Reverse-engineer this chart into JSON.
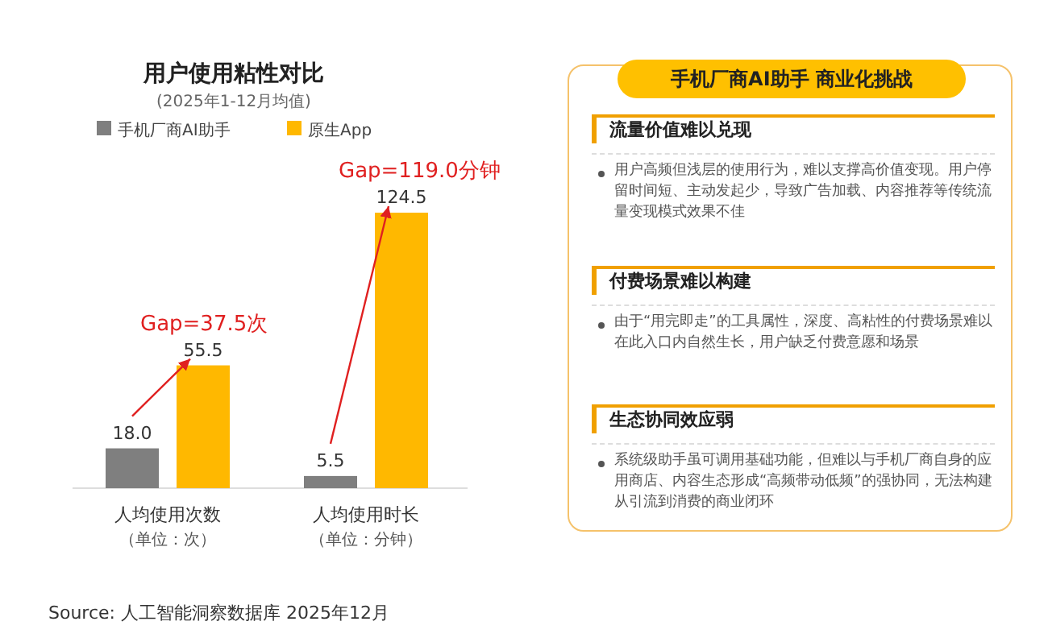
{
  "chart_data": [
    {
      "type": "bar",
      "title": "用户使用粘性对比",
      "subtitle": "(2025年1-12月均值)",
      "categories": [
        "人均使用次数（单位：次）",
        "人均使用时长（单位：分钟）"
      ],
      "series": [
        {
          "name": "手机厂商AI助手",
          "color": "#7f7f7f",
          "values": [
            18.0,
            5.5
          ],
          "value_labels": [
            "18.0",
            "5.5"
          ]
        },
        {
          "name": "原生App",
          "color": "#ffb800",
          "values": [
            55.5,
            124.5
          ],
          "value_labels": [
            "55.5",
            "124.5"
          ]
        }
      ],
      "legend": "top",
      "annotations": [
        "Gap=37.5次",
        "Gap=119.0分钟",
        "Source:  人工智能洞察数据库 2025年12月"
      ]
    },
    {
      "type": "other",
      "title": "手机厂商AI助手 商业化挑战",
      "annotations": [
        "流量价值难以兑现",
        "用户高频但浅层的使用行为，难以支撑高价值变现。用户停留时间短、主动发起少，导致广告加载、内容推荐等传统流量变现模式效果不佳",
        "付费场景难以构建",
        "由于“用完即走”的工具属性，深度、高粘性的付费场景难以在此入口内自然生长，用户缺乏付费意愿和场景",
        "生态协同效应弱",
        "系统级助手虽可调用基础功能，但难以与手机厂商自身的应用商店、内容生态形成“高频带动低频”的强协同，无法构建从引流到消费的商业闭环"
      ]
    }
  ]
}
